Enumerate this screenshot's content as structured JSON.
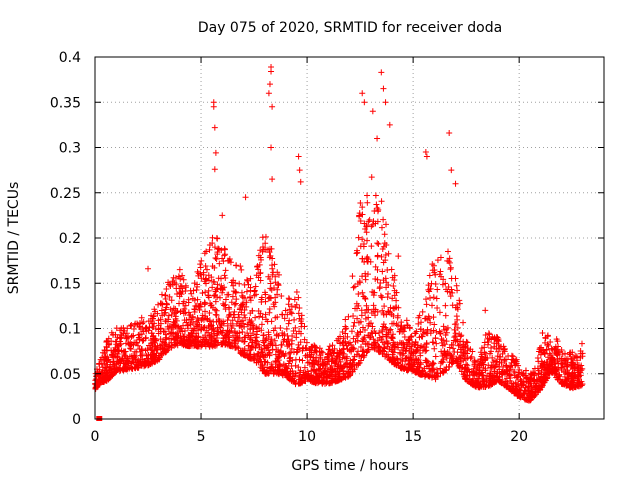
{
  "chart_data": {
    "type": "scatter",
    "title": "Day 075 of 2020, SRMTID for receiver doda",
    "xlabel": "GPS time / hours",
    "ylabel": "SRMTID / TECUs",
    "xlim": [
      0,
      24
    ],
    "ylim": [
      0,
      0.4
    ],
    "grid": true,
    "x_ticks": [
      0,
      5,
      10,
      15,
      20
    ],
    "y_ticks": [
      0,
      0.05,
      0.1,
      0.15,
      0.2,
      0.25,
      0.3,
      0.35,
      0.4
    ],
    "x_tick_labels": [
      "0",
      "5",
      "10",
      "15",
      "20"
    ],
    "y_tick_labels": [
      "0",
      "0.05",
      "0.1",
      "0.15",
      "0.2",
      "0.25",
      "0.3",
      "0.35",
      "0.4"
    ],
    "marker": "+",
    "color": "#ff0000",
    "gap_marker": {
      "x": 0.2,
      "y": 0.0
    },
    "envelope": {
      "x": [
        0.0,
        0.3,
        0.6,
        1.0,
        1.5,
        2.0,
        2.5,
        3.0,
        3.5,
        4.0,
        4.5,
        5.0,
        5.5,
        6.0,
        6.5,
        7.0,
        7.5,
        8.0,
        8.5,
        9.0,
        9.5,
        10.0,
        10.5,
        11.0,
        11.5,
        12.0,
        12.5,
        13.0,
        13.5,
        14.0,
        14.5,
        15.0,
        15.5,
        16.0,
        16.5,
        17.0,
        17.5,
        18.0,
        18.5,
        19.0,
        19.5,
        20.0,
        20.5,
        21.0,
        21.5,
        22.0,
        22.5,
        23.0
      ],
      "base": [
        0.035,
        0.045,
        0.05,
        0.06,
        0.062,
        0.065,
        0.068,
        0.075,
        0.09,
        0.095,
        0.09,
        0.095,
        0.1,
        0.1,
        0.095,
        0.085,
        0.08,
        0.075,
        0.07,
        0.06,
        0.055,
        0.05,
        0.045,
        0.045,
        0.05,
        0.06,
        0.09,
        0.11,
        0.1,
        0.08,
        0.065,
        0.06,
        0.06,
        0.065,
        0.075,
        0.08,
        0.05,
        0.04,
        0.045,
        0.05,
        0.04,
        0.03,
        0.025,
        0.04,
        0.06,
        0.045,
        0.04,
        0.045
      ],
      "spread": [
        0.01,
        0.02,
        0.03,
        0.03,
        0.03,
        0.035,
        0.035,
        0.04,
        0.05,
        0.05,
        0.04,
        0.06,
        0.08,
        0.07,
        0.06,
        0.06,
        0.06,
        0.1,
        0.08,
        0.05,
        0.07,
        0.03,
        0.025,
        0.025,
        0.03,
        0.05,
        0.11,
        0.12,
        0.11,
        0.07,
        0.04,
        0.03,
        0.05,
        0.09,
        0.09,
        0.06,
        0.03,
        0.02,
        0.04,
        0.03,
        0.025,
        0.025,
        0.02,
        0.03,
        0.03,
        0.025,
        0.025,
        0.03
      ],
      "points_per_hour": 150
    },
    "highlight_points": [
      {
        "x": 5.6,
        "y": 0.35
      },
      {
        "x": 5.6,
        "y": 0.345
      },
      {
        "x": 5.65,
        "y": 0.322
      },
      {
        "x": 5.7,
        "y": 0.294
      },
      {
        "x": 5.65,
        "y": 0.276
      },
      {
        "x": 8.3,
        "y": 0.389
      },
      {
        "x": 8.3,
        "y": 0.384
      },
      {
        "x": 8.25,
        "y": 0.37
      },
      {
        "x": 8.2,
        "y": 0.36
      },
      {
        "x": 8.35,
        "y": 0.345
      },
      {
        "x": 8.3,
        "y": 0.3
      },
      {
        "x": 8.35,
        "y": 0.265
      },
      {
        "x": 9.6,
        "y": 0.29
      },
      {
        "x": 9.65,
        "y": 0.275
      },
      {
        "x": 9.7,
        "y": 0.262
      },
      {
        "x": 12.6,
        "y": 0.36
      },
      {
        "x": 12.7,
        "y": 0.35
      },
      {
        "x": 13.1,
        "y": 0.34
      },
      {
        "x": 13.5,
        "y": 0.383
      },
      {
        "x": 13.6,
        "y": 0.365
      },
      {
        "x": 13.7,
        "y": 0.35
      },
      {
        "x": 13.9,
        "y": 0.325
      },
      {
        "x": 13.3,
        "y": 0.31
      },
      {
        "x": 15.6,
        "y": 0.295
      },
      {
        "x": 15.65,
        "y": 0.29
      },
      {
        "x": 16.7,
        "y": 0.316
      },
      {
        "x": 16.8,
        "y": 0.275
      },
      {
        "x": 17.0,
        "y": 0.26
      },
      {
        "x": 7.1,
        "y": 0.245
      },
      {
        "x": 6.0,
        "y": 0.225
      },
      {
        "x": 14.3,
        "y": 0.18
      },
      {
        "x": 18.4,
        "y": 0.12
      },
      {
        "x": 21.1,
        "y": 0.095
      },
      {
        "x": 2.5,
        "y": 0.166
      },
      {
        "x": 4.0,
        "y": 0.165
      }
    ]
  }
}
